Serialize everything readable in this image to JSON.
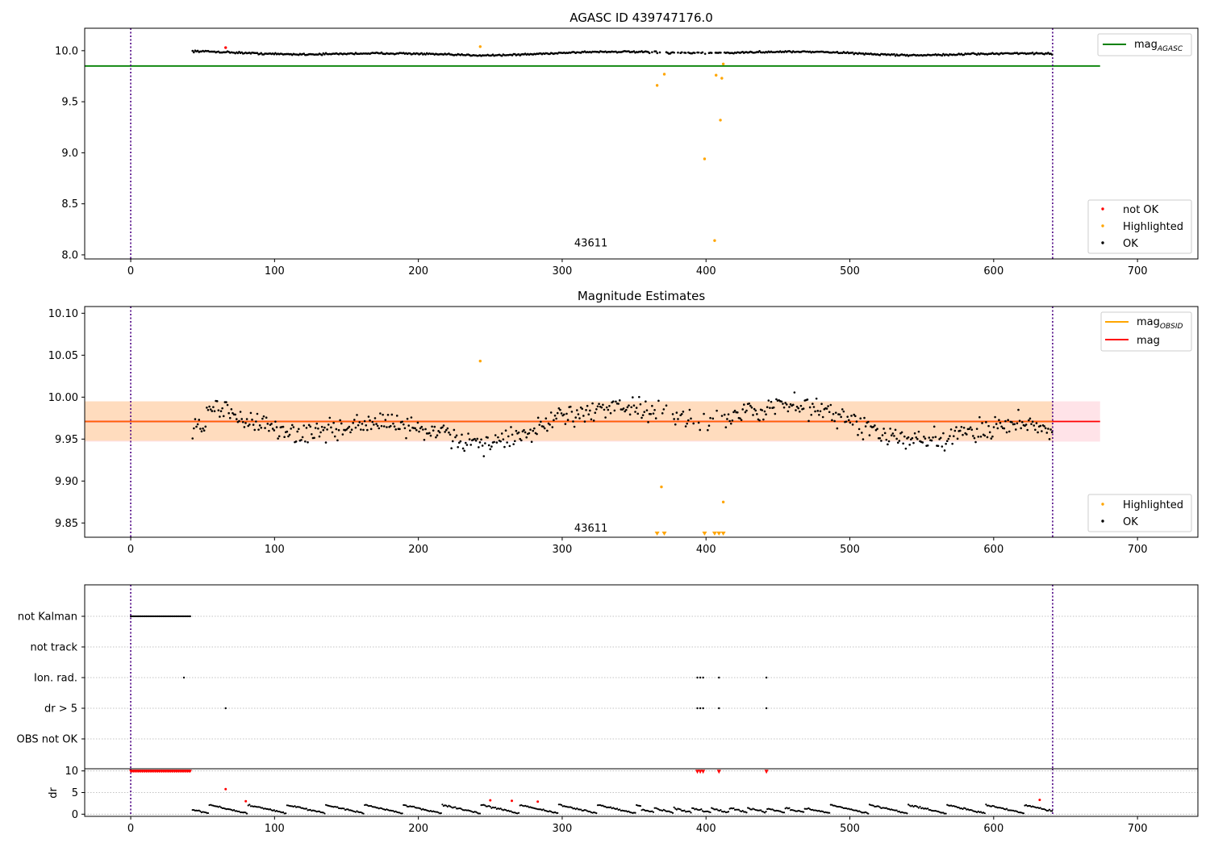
{
  "figure": {
    "background": "#ffffff"
  },
  "colors": {
    "ok": "#000000",
    "highlighted": "#ffa500",
    "not_ok": "#ff0000",
    "agasc_line": "#008000",
    "mag_line": "#ff0000",
    "obsid_line": "#ffa500",
    "band_outer": "#ffc0cb",
    "band_inner": "#ffdab9",
    "obs_marker": "#4b0082"
  },
  "chart_data": [
    {
      "id": "agasc",
      "type": "scatter",
      "title": "AGASC ID 439747176.0",
      "xlim": [
        -32,
        742
      ],
      "ylim": [
        7.96,
        10.22
      ],
      "xticks": [
        0,
        100,
        200,
        300,
        400,
        500,
        600,
        700
      ],
      "yticks": [
        8.0,
        8.5,
        9.0,
        9.5,
        10.0
      ],
      "ytick_labels": [
        "8.0",
        "8.5",
        "9.0",
        "9.5",
        "10.0"
      ],
      "vlines": [
        0,
        641
      ],
      "obsid_label": {
        "text": "43611",
        "x": 320,
        "y": 8.05
      },
      "hlines": [
        {
          "name": "mag_AGASC",
          "y": 9.85,
          "x0": -32,
          "x1": 674
        }
      ],
      "series_ok": {
        "x0": 43,
        "x1": 641,
        "base": 9.975,
        "amp": 0.02,
        "noise": 0.012
      },
      "highlighted": [
        [
          243,
          10.04
        ],
        [
          366,
          9.66
        ],
        [
          371,
          9.77
        ],
        [
          399,
          8.94
        ],
        [
          406,
          8.14
        ],
        [
          407,
          9.76
        ],
        [
          410,
          9.32
        ],
        [
          411,
          9.73
        ],
        [
          412,
          9.87
        ]
      ],
      "not_ok": [
        [
          66,
          10.03
        ]
      ],
      "legend_lines": [
        {
          "label": "mag",
          "sub": "AGASC",
          "color": "#008000"
        }
      ],
      "legend_points": [
        {
          "label": "not OK",
          "color": "#ff0000"
        },
        {
          "label": "Highlighted",
          "color": "#ffa500"
        },
        {
          "label": "OK",
          "color": "#000000"
        }
      ]
    },
    {
      "id": "estimates",
      "type": "scatter",
      "title": "Magnitude Estimates",
      "xlim": [
        -32,
        742
      ],
      "ylim": [
        9.833,
        10.108
      ],
      "xticks": [
        0,
        100,
        200,
        300,
        400,
        500,
        600,
        700
      ],
      "yticks": [
        9.85,
        9.9,
        9.95,
        10.0,
        10.05,
        10.1
      ],
      "ytick_labels": [
        "9.85",
        "9.90",
        "9.95",
        "10.00",
        "10.05",
        "10.10"
      ],
      "vlines": [
        0,
        641
      ],
      "obsid_label": {
        "text": "43611",
        "x": 320,
        "y": 9.838
      },
      "mag": 9.971,
      "band_outer": [
        9.947,
        9.995
      ],
      "band_inner": [
        9.948,
        9.995
      ],
      "band_x": [
        -32,
        674
      ],
      "series_ok": {
        "x0": 43,
        "x1": 641,
        "base": 9.97,
        "amp": 0.025,
        "noise": 0.02
      },
      "highlighted": [
        [
          243,
          10.043
        ],
        [
          369,
          9.893
        ],
        [
          412,
          9.875
        ]
      ],
      "clipped": [
        366,
        371,
        399,
        406,
        409,
        412
      ],
      "legend_lines": [
        {
          "label": "mag",
          "sub": "OBSID",
          "color": "#ffa500"
        },
        {
          "label": "mag",
          "sub": "",
          "color": "#ff0000"
        }
      ],
      "legend_points": [
        {
          "label": "Highlighted",
          "color": "#ffa500"
        },
        {
          "label": "OK",
          "color": "#000000"
        }
      ]
    },
    {
      "id": "flags",
      "type": "scatter",
      "xlim": [
        -32,
        742
      ],
      "vlines": [
        0,
        641
      ],
      "categories": [
        "not Kalman",
        "not track",
        "Ion. rad.",
        "dr > 5",
        "OBS not OK"
      ],
      "flag_points": {
        "not Kalman": {
          "range": [
            0,
            42
          ]
        },
        "not track": {
          "points": []
        },
        "Ion. rad.": {
          "points": [
            37,
            394,
            396,
            398,
            409,
            442
          ]
        },
        "dr > 5": {
          "points": [
            66,
            394,
            396,
            398,
            409,
            442
          ]
        },
        "OBS not OK": {
          "points": []
        }
      }
    },
    {
      "id": "dr",
      "type": "scatter",
      "ylabel": "dr",
      "xlim": [
        -32,
        742
      ],
      "ylim": [
        -0.5,
        10.5
      ],
      "xticks": [
        0,
        100,
        200,
        300,
        400,
        500,
        600,
        700
      ],
      "yticks": [
        0,
        5,
        10
      ],
      "ytick_labels": [
        "0",
        "5",
        "10"
      ],
      "vlines": [
        0,
        641
      ],
      "clip_range": [
        0,
        42
      ],
      "not_ok_points": [
        [
          66,
          5.8
        ],
        [
          80,
          3.0
        ],
        [
          250,
          3.2
        ],
        [
          265,
          3.1
        ],
        [
          283,
          2.9
        ],
        [
          394,
          9.8
        ],
        [
          396,
          9.8
        ],
        [
          398,
          9.8
        ],
        [
          409,
          9.8
        ],
        [
          442,
          9.8
        ],
        [
          632,
          3.3
        ]
      ],
      "series_ok": {
        "x0": 43,
        "x1": 641
      }
    }
  ]
}
